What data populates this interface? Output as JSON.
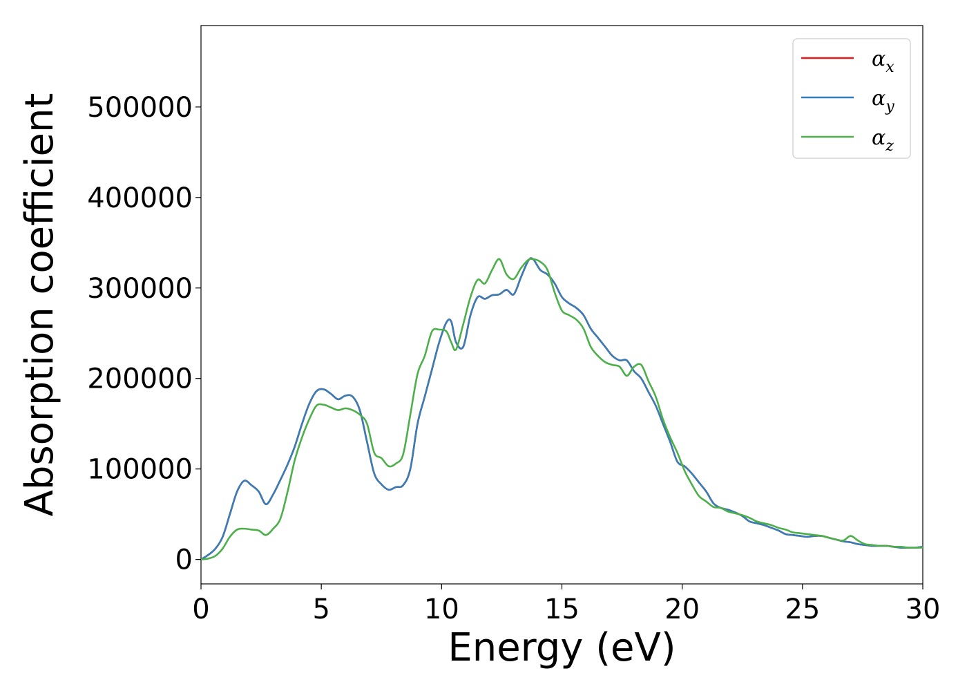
{
  "chart_data": {
    "type": "line",
    "xlabel": "Energy (eV)",
    "ylabel": "Absorption coefficient",
    "xlim": [
      0,
      30
    ],
    "ylim": [
      -27000,
      590000
    ],
    "xticks": [
      "0",
      "5",
      "10",
      "15",
      "20",
      "25",
      "30"
    ],
    "yticks": [
      "0",
      "100000",
      "200000",
      "300000",
      "400000",
      "500000"
    ],
    "grid": false,
    "legend_position": "top-right",
    "series": [
      {
        "name": "α_x",
        "label_base": "α",
        "label_sub": "x",
        "color": "#e41a1c",
        "x": [
          0,
          0.3,
          0.6,
          0.9,
          1.2,
          1.5,
          1.8,
          2.1,
          2.4,
          2.7,
          3.0,
          3.3,
          3.6,
          3.9,
          4.2,
          4.5,
          4.8,
          5.1,
          5.4,
          5.7,
          6.0,
          6.3,
          6.6,
          6.9,
          7.2,
          7.5,
          7.8,
          8.1,
          8.4,
          8.7,
          9.0,
          9.3,
          9.6,
          9.9,
          10.2,
          10.4,
          10.6,
          10.9,
          11.2,
          11.5,
          11.8,
          12.1,
          12.4,
          12.7,
          13.0,
          13.3,
          13.6,
          13.8,
          14.1,
          14.4,
          14.7,
          15.0,
          15.3,
          15.6,
          15.9,
          16.2,
          16.5,
          16.8,
          17.1,
          17.4,
          17.7,
          18.0,
          18.3,
          18.6,
          18.9,
          19.2,
          19.5,
          19.8,
          20.1,
          20.4,
          20.7,
          21.0,
          21.3,
          21.6,
          21.9,
          22.2,
          22.5,
          22.8,
          23.1,
          23.4,
          23.7,
          24.0,
          24.3,
          24.6,
          24.9,
          25.2,
          25.5,
          25.8,
          26.1,
          26.4,
          26.7,
          27.0,
          27.3,
          27.6,
          27.9,
          28.2,
          28.5,
          28.8,
          29.1,
          29.4,
          29.7,
          30.0
        ],
        "values": [
          0,
          5000,
          12000,
          25000,
          50000,
          75000,
          87000,
          82000,
          75000,
          61000,
          72000,
          88000,
          105000,
          125000,
          150000,
          172000,
          186000,
          188000,
          183000,
          177000,
          181000,
          180000,
          165000,
          130000,
          95000,
          83000,
          77000,
          80000,
          82000,
          100000,
          150000,
          180000,
          210000,
          240000,
          262000,
          263000,
          240000,
          235000,
          270000,
          290000,
          288000,
          292000,
          293000,
          298000,
          293000,
          312000,
          330000,
          332000,
          320000,
          315000,
          305000,
          290000,
          283000,
          278000,
          270000,
          255000,
          245000,
          235000,
          225000,
          220000,
          220000,
          208000,
          200000,
          185000,
          170000,
          150000,
          130000,
          108000,
          103000,
          95000,
          85000,
          75000,
          62000,
          57000,
          55000,
          52000,
          48000,
          42000,
          40000,
          38000,
          35000,
          32000,
          28000,
          27000,
          26000,
          25000,
          26000,
          26000,
          24000,
          22000,
          20000,
          19000,
          17000,
          16000,
          15000,
          15000,
          15000,
          14000,
          13000,
          13000,
          13000,
          14000
        ]
      },
      {
        "name": "α_y",
        "label_base": "α",
        "label_sub": "y",
        "color": "#377eb8",
        "x": [
          0,
          0.3,
          0.6,
          0.9,
          1.2,
          1.5,
          1.8,
          2.1,
          2.4,
          2.7,
          3.0,
          3.3,
          3.6,
          3.9,
          4.2,
          4.5,
          4.8,
          5.1,
          5.4,
          5.7,
          6.0,
          6.3,
          6.6,
          6.9,
          7.2,
          7.5,
          7.8,
          8.1,
          8.4,
          8.7,
          9.0,
          9.3,
          9.6,
          9.9,
          10.2,
          10.4,
          10.6,
          10.9,
          11.2,
          11.5,
          11.8,
          12.1,
          12.4,
          12.7,
          13.0,
          13.3,
          13.6,
          13.8,
          14.1,
          14.4,
          14.7,
          15.0,
          15.3,
          15.6,
          15.9,
          16.2,
          16.5,
          16.8,
          17.1,
          17.4,
          17.7,
          18.0,
          18.3,
          18.6,
          18.9,
          19.2,
          19.5,
          19.8,
          20.1,
          20.4,
          20.7,
          21.0,
          21.3,
          21.6,
          21.9,
          22.2,
          22.5,
          22.8,
          23.1,
          23.4,
          23.7,
          24.0,
          24.3,
          24.6,
          24.9,
          25.2,
          25.5,
          25.8,
          26.1,
          26.4,
          26.7,
          27.0,
          27.3,
          27.6,
          27.9,
          28.2,
          28.5,
          28.8,
          29.1,
          29.4,
          29.7,
          30.0
        ],
        "values": [
          0,
          5000,
          12000,
          25000,
          50000,
          75000,
          87000,
          82000,
          75000,
          61000,
          72000,
          88000,
          105000,
          125000,
          150000,
          172000,
          186000,
          188000,
          183000,
          177000,
          181000,
          180000,
          165000,
          130000,
          95000,
          83000,
          77000,
          80000,
          82000,
          100000,
          150000,
          180000,
          210000,
          240000,
          262000,
          263000,
          240000,
          235000,
          270000,
          290000,
          288000,
          292000,
          293000,
          298000,
          293000,
          312000,
          330000,
          332000,
          320000,
          315000,
          305000,
          290000,
          283000,
          278000,
          270000,
          255000,
          245000,
          235000,
          225000,
          220000,
          220000,
          208000,
          200000,
          185000,
          170000,
          150000,
          130000,
          108000,
          103000,
          95000,
          85000,
          75000,
          62000,
          57000,
          55000,
          52000,
          48000,
          42000,
          40000,
          38000,
          35000,
          32000,
          28000,
          27000,
          26000,
          25000,
          26000,
          26000,
          24000,
          22000,
          20000,
          19000,
          17000,
          16000,
          15000,
          15000,
          15000,
          14000,
          13000,
          13000,
          13000,
          14000
        ]
      },
      {
        "name": "α_z",
        "label_base": "α",
        "label_sub": "z",
        "color": "#4daf4a",
        "x": [
          0,
          0.3,
          0.6,
          0.9,
          1.2,
          1.5,
          1.8,
          2.1,
          2.4,
          2.7,
          3.0,
          3.3,
          3.6,
          3.9,
          4.2,
          4.5,
          4.8,
          5.1,
          5.4,
          5.7,
          6.0,
          6.3,
          6.6,
          6.9,
          7.2,
          7.5,
          7.8,
          8.1,
          8.4,
          8.7,
          9.0,
          9.3,
          9.6,
          9.9,
          10.2,
          10.4,
          10.6,
          10.9,
          11.2,
          11.5,
          11.8,
          12.1,
          12.4,
          12.7,
          13.0,
          13.3,
          13.6,
          13.8,
          14.1,
          14.4,
          14.7,
          15.0,
          15.3,
          15.6,
          15.9,
          16.2,
          16.5,
          16.8,
          17.1,
          17.4,
          17.7,
          18.0,
          18.3,
          18.6,
          18.9,
          19.2,
          19.5,
          19.8,
          20.1,
          20.4,
          20.7,
          21.0,
          21.3,
          21.6,
          21.9,
          22.2,
          22.5,
          22.8,
          23.1,
          23.4,
          23.7,
          24.0,
          24.3,
          24.6,
          24.9,
          25.2,
          25.5,
          25.8,
          26.1,
          26.4,
          26.7,
          27.0,
          27.3,
          27.6,
          27.9,
          28.2,
          28.5,
          28.8,
          29.1,
          29.4,
          29.7,
          30.0
        ],
        "values": [
          0,
          1000,
          4000,
          12000,
          25000,
          33000,
          34000,
          33000,
          32000,
          27000,
          34000,
          45000,
          75000,
          110000,
          135000,
          155000,
          170000,
          171000,
          168000,
          165000,
          167000,
          165000,
          160000,
          150000,
          118000,
          112000,
          103000,
          106000,
          116000,
          160000,
          205000,
          225000,
          252000,
          254000,
          252000,
          240000,
          232000,
          260000,
          290000,
          309000,
          305000,
          320000,
          332000,
          315000,
          310000,
          322000,
          331000,
          332000,
          329000,
          320000,
          295000,
          275000,
          270000,
          265000,
          255000,
          235000,
          225000,
          218000,
          215000,
          213000,
          203000,
          213000,
          215000,
          197000,
          180000,
          155000,
          135000,
          118000,
          98000,
          83000,
          70000,
          64000,
          58000,
          57000,
          53000,
          51000,
          49000,
          46000,
          42000,
          40000,
          38000,
          35000,
          33000,
          30000,
          29000,
          28000,
          27000,
          26000,
          24000,
          22000,
          21000,
          26000,
          21000,
          17000,
          16000,
          15000,
          15000,
          14000,
          14000,
          13000,
          13000,
          13000
        ]
      }
    ]
  }
}
